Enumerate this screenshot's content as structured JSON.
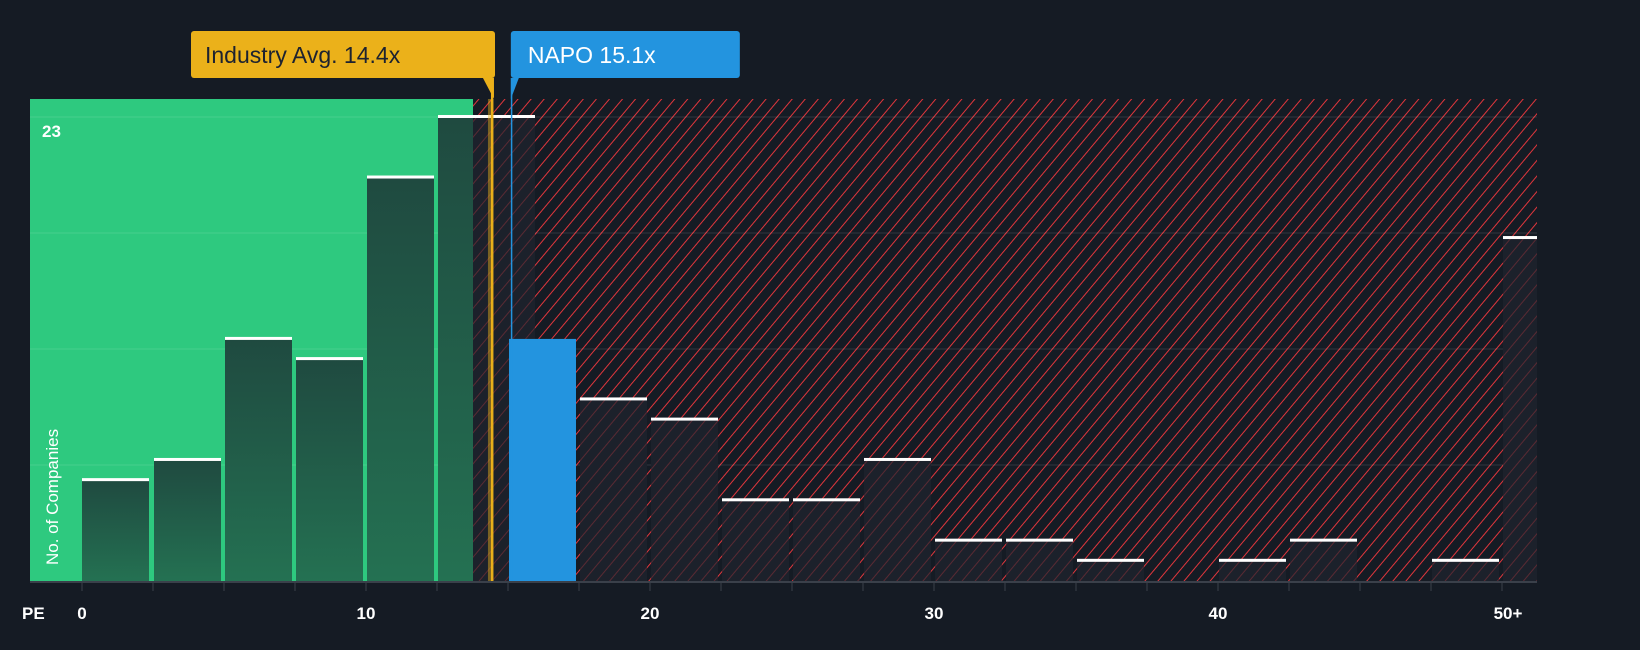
{
  "chart_data": {
    "type": "bar",
    "title": "",
    "xlabel": "PE",
    "ylabel": "No. of Companies",
    "bin_width": 2.5,
    "categories": [
      "0-2.5",
      "2.5-5",
      "5-7.5",
      "7.5-10",
      "10-12.5",
      "12.5-15",
      "15-17.5",
      "17.5-20",
      "20-22.5",
      "22.5-25",
      "25-27.5",
      "27.5-30",
      "30-32.5",
      "32.5-35",
      "35-37.5",
      "37.5-40",
      "40-42.5",
      "42.5-45",
      "45-47.5",
      "47.5-50",
      "50+"
    ],
    "values": [
      5,
      6,
      12,
      11,
      20,
      23,
      12,
      9,
      8,
      4,
      4,
      6,
      2,
      2,
      1,
      0,
      1,
      2,
      0,
      1,
      17
    ],
    "highlight_index": 6,
    "xticks": [
      "0",
      "10",
      "20",
      "30",
      "40",
      "50+"
    ],
    "xtick_values": [
      0,
      10,
      20,
      30,
      40,
      50
    ],
    "ymax_label": "23",
    "ylim": [
      0,
      23
    ],
    "grid": true,
    "industry_avg": {
      "label": "Industry Avg. 14.4x",
      "value": 14.4
    },
    "company": {
      "label": "NAPO 15.1x",
      "value": 15.1
    },
    "colors": {
      "background": "#151b24",
      "green": "#2ec97f",
      "bar_green": "#215444",
      "blue": "#2394df",
      "gold": "#ebb11a",
      "red_hatch": "#e0363c",
      "bar_dark": "#1c212b"
    }
  }
}
